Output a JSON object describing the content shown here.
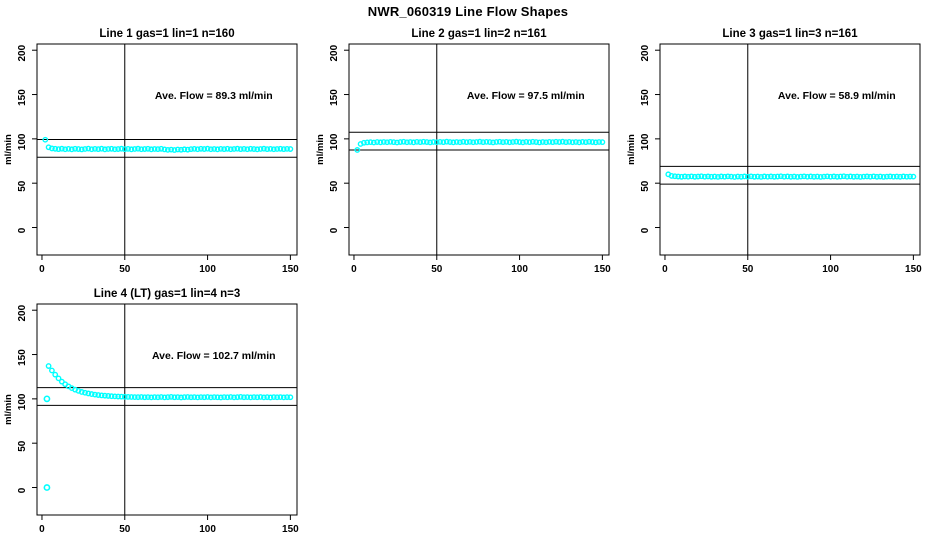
{
  "figure": {
    "title": "NWR_060319  Line Flow Shapes",
    "background_color": "#ffffff",
    "point_color": "#00ffff",
    "line_color": "#000000"
  },
  "axes": {
    "ylabel": "ml/min",
    "xlabel": "",
    "yticks": [
      0,
      50,
      100,
      150,
      200
    ],
    "xticks": [
      0,
      50,
      100,
      150
    ],
    "ylim": [
      -31,
      207
    ],
    "xlim": [
      -3,
      154
    ],
    "vline_x": 50,
    "grid": "off",
    "legend": "none"
  },
  "chart_data": [
    {
      "type": "scatter",
      "title": "Line 1 gas=1 lin=1 n=160",
      "annotation": "Ave. Flow =  89.3  ml/min",
      "ave_flow_ml_min": 89.3,
      "n": 160,
      "ref_lines": [
        99.3,
        79.3
      ],
      "series": {
        "x0": 2,
        "xstep": 2,
        "values": [
          99.0,
          90.5,
          89.2,
          88.8,
          88.4,
          88.9,
          88.3,
          88.7,
          88.2,
          88.8,
          88.5,
          88.1,
          88.6,
          89.0,
          88.3,
          88.7,
          88.4,
          88.9,
          88.2,
          88.6,
          88.8,
          88.3,
          88.5,
          88.9,
          88.4,
          88.7,
          88.2,
          88.6,
          88.9,
          88.3,
          88.5,
          88.8,
          88.2,
          88.6,
          88.4,
          88.8,
          88.1,
          87.6,
          87.9,
          87.4,
          88.0,
          87.7,
          88.2,
          87.8,
          88.4,
          88.7,
          88.3,
          88.8,
          88.5,
          88.9,
          88.3,
          88.6,
          88.2,
          88.7,
          88.4,
          88.8,
          88.3,
          88.6,
          88.9,
          88.4,
          88.7,
          88.3,
          88.8,
          88.5,
          88.2,
          88.6,
          88.9,
          88.4,
          88.7,
          88.3,
          88.6,
          88.8,
          88.4,
          88.7,
          88.5
        ]
      },
      "extra_points": []
    },
    {
      "type": "scatter",
      "title": "Line 2 gas=1 lin=2 n=161",
      "annotation": "Ave. Flow =  97.5  ml/min",
      "ave_flow_ml_min": 97.5,
      "n": 161,
      "ref_lines": [
        107.5,
        87.5
      ],
      "series": {
        "x0": 2,
        "xstep": 2,
        "values": [
          87.5,
          94.2,
          95.6,
          96.0,
          96.3,
          95.9,
          96.4,
          96.1,
          96.5,
          96.2,
          96.6,
          96.3,
          95.9,
          96.4,
          96.7,
          96.2,
          96.5,
          96.1,
          96.6,
          96.3,
          96.7,
          96.4,
          96.0,
          96.5,
          96.2,
          96.6,
          96.3,
          96.8,
          96.4,
          96.1,
          96.5,
          96.2,
          96.7,
          96.3,
          96.6,
          96.2,
          96.5,
          96.8,
          96.3,
          96.6,
          96.4,
          96.0,
          96.5,
          96.7,
          96.3,
          96.6,
          96.2,
          96.5,
          96.8,
          96.4,
          96.1,
          96.6,
          96.3,
          96.7,
          96.4,
          96.0,
          96.5,
          96.2,
          96.6,
          96.3,
          96.7,
          96.4,
          96.8,
          96.3,
          96.6,
          96.2,
          96.5,
          96.1,
          96.6,
          96.3,
          96.7,
          96.4,
          96.1,
          96.5,
          96.3
        ]
      },
      "extra_points": []
    },
    {
      "type": "scatter",
      "title": "Line 3 gas=1 lin=3 n=161",
      "annotation": "Ave. Flow =  58.9  ml/min",
      "ave_flow_ml_min": 58.9,
      "n": 161,
      "ref_lines": [
        68.9,
        48.9
      ],
      "series": {
        "x0": 2,
        "xstep": 2,
        "values": [
          60.0,
          58.2,
          57.8,
          57.5,
          57.2,
          57.6,
          57.3,
          57.7,
          57.2,
          57.5,
          57.8,
          57.3,
          57.6,
          57.2,
          57.5,
          57.1,
          57.6,
          57.3,
          57.7,
          57.4,
          57.0,
          57.5,
          57.2,
          57.6,
          57.3,
          57.7,
          57.2,
          57.5,
          57.1,
          57.6,
          57.3,
          57.6,
          57.2,
          57.5,
          57.8,
          57.3,
          57.6,
          57.2,
          57.5,
          57.1,
          57.4,
          57.7,
          57.3,
          57.6,
          57.2,
          57.5,
          57.1,
          57.4,
          57.7,
          57.3,
          57.6,
          57.2,
          57.5,
          57.8,
          57.3,
          57.6,
          57.2,
          57.5,
          57.1,
          57.4,
          57.6,
          57.3,
          57.7,
          57.2,
          57.5,
          57.1,
          57.4,
          57.6,
          57.3,
          57.5,
          57.2,
          57.6,
          57.3,
          57.5,
          57.4
        ]
      },
      "extra_points": []
    },
    {
      "type": "scatter",
      "title": "Line 4 (LT) gas=1 lin=4 n=3",
      "annotation": "Ave. Flow =  102.7  ml/min",
      "ave_flow_ml_min": 102.7,
      "n": 3,
      "ref_lines": [
        112.7,
        92.7
      ],
      "series": {
        "x0": 4,
        "xstep": 2,
        "values": [
          137.0,
          132.0,
          127.3,
          123.1,
          119.4,
          116.5,
          114.1,
          112.1,
          110.4,
          109.0,
          107.8,
          106.9,
          106.1,
          105.4,
          104.8,
          104.3,
          103.9,
          103.6,
          103.3,
          103.0,
          102.8,
          102.6,
          102.5,
          102.3,
          102.2,
          102.1,
          102.0,
          101.9,
          102.1,
          101.8,
          102.0,
          101.7,
          102.0,
          101.8,
          102.1,
          101.7,
          101.9,
          102.2,
          101.8,
          102.0,
          101.6,
          101.9,
          102.1,
          101.8,
          102.0,
          101.7,
          102.0,
          101.8,
          102.1,
          101.7,
          102.0,
          101.8,
          101.6,
          102.0,
          101.8,
          102.1,
          101.7,
          101.9,
          102.2,
          101.8,
          102.0,
          101.7,
          102.0,
          101.8,
          102.1,
          101.7,
          101.9,
          101.6,
          102.0,
          101.8,
          102.0,
          101.7,
          101.9,
          101.8
        ]
      },
      "extra_points": [
        [
          3,
          0
        ],
        [
          3,
          100
        ]
      ]
    }
  ]
}
